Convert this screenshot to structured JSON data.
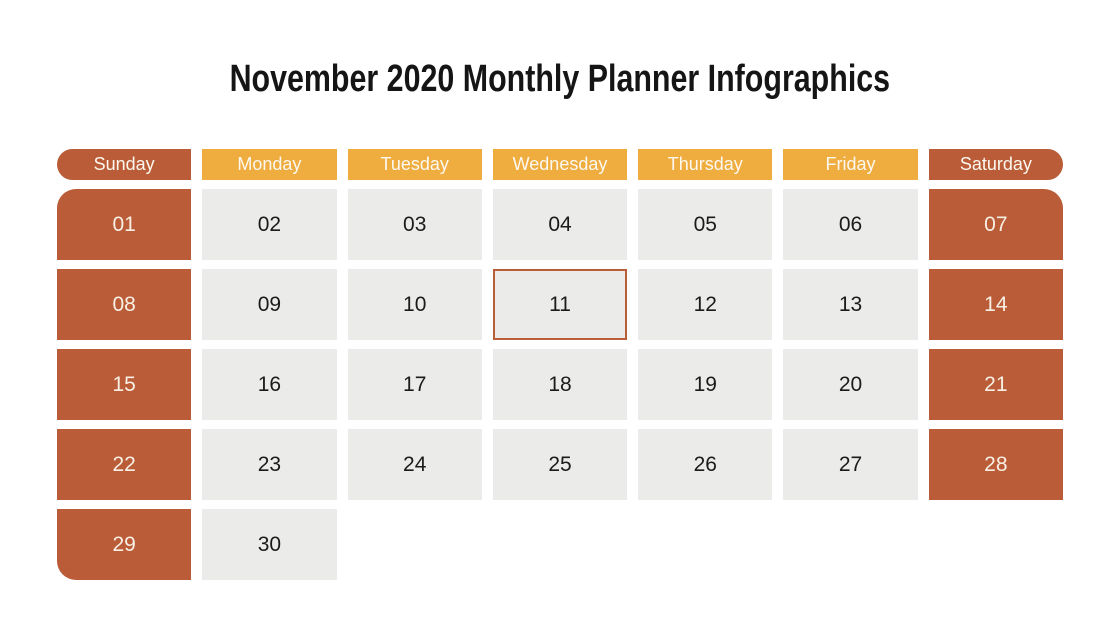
{
  "page": {
    "title": "November 2020 Monthly Planner Infographics",
    "background": "#FFFFFF"
  },
  "colors": {
    "title": "#151515",
    "weekend": "#B95C37",
    "weekday_header": "#EFAC3F",
    "header_text": "#FCF8F0",
    "day_cell": "#EBEBEA",
    "day_text": "#1B1B1B",
    "weekend_day_text": "#F8F0E5",
    "selected_border": "#BA5D38"
  },
  "calendar": {
    "weekday_headers": [
      "Sunday",
      "Monday",
      "Tuesday",
      "Wednesday",
      "Thursday",
      "Friday",
      "Saturday"
    ],
    "days": [
      "01",
      "02",
      "03",
      "04",
      "05",
      "06",
      "07",
      "08",
      "09",
      "10",
      "11",
      "12",
      "13",
      "14",
      "15",
      "16",
      "17",
      "18",
      "19",
      "20",
      "21",
      "22",
      "23",
      "24",
      "25",
      "26",
      "27",
      "28",
      "29",
      "30"
    ],
    "selected_day": "11"
  }
}
